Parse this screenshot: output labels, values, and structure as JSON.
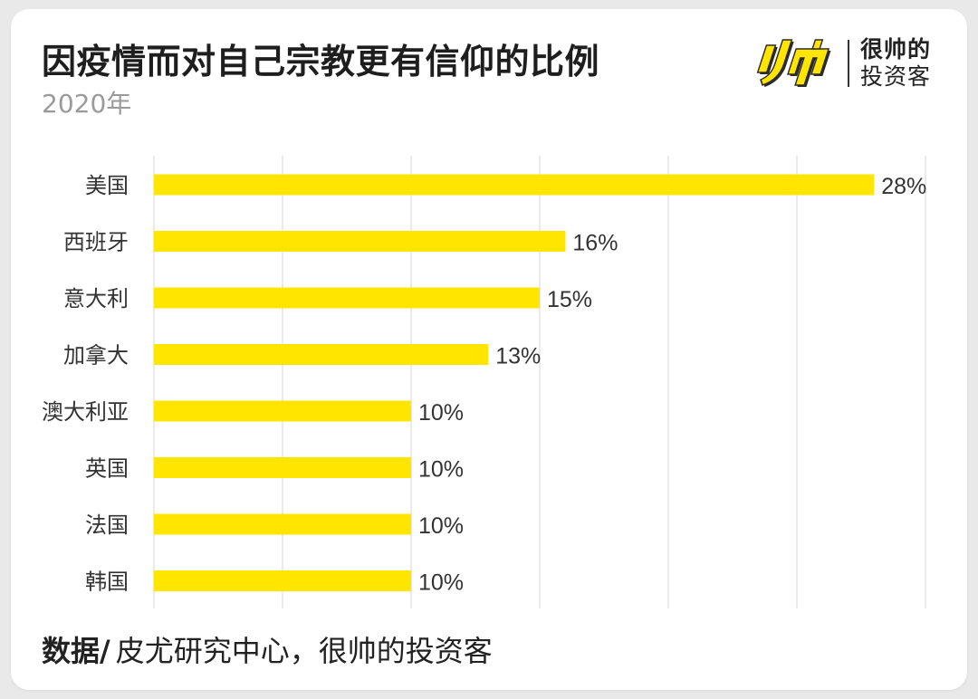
{
  "chart_data": {
    "type": "bar",
    "orientation": "horizontal",
    "title": "因疫情而对自己宗教更有信仰的比例",
    "subtitle": "2020年",
    "categories": [
      "美国",
      "西班牙",
      "意大利",
      "加拿大",
      "澳大利亚",
      "英国",
      "法国",
      "韩国"
    ],
    "values": [
      28,
      16,
      15,
      13,
      10,
      10,
      10,
      10
    ],
    "value_labels": [
      "28%",
      "16%",
      "15%",
      "13%",
      "10%",
      "10%",
      "10%",
      "10%"
    ],
    "xlim": [
      0,
      30
    ],
    "grid": true,
    "bar_color": "#ffe500"
  },
  "brand": {
    "name_line1": "很帅的",
    "name_line2": "投资客",
    "mark_color": "#ffe500"
  },
  "source": {
    "lead": "数据",
    "slash": "/",
    "text": "皮尤研究中心，很帅的投资客"
  }
}
